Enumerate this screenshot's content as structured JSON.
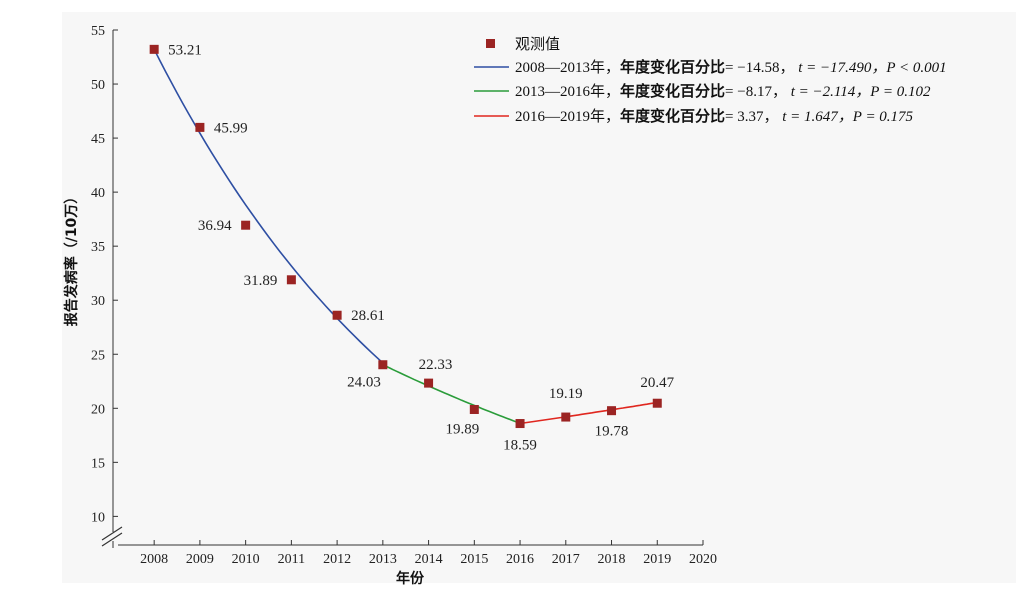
{
  "chart_data": {
    "type": "line",
    "xlabel": "年份",
    "ylabel": "报告发病率（/10万）",
    "x_ticks": [
      "2008",
      "2009",
      "2010",
      "2011",
      "2012",
      "2013",
      "2014",
      "2015",
      "2016",
      "2017",
      "2018",
      "2019",
      "2020"
    ],
    "y_ticks": [
      "10",
      "15",
      "20",
      "25",
      "30",
      "35",
      "40",
      "45",
      "50",
      "55"
    ],
    "xlim": [
      2007.1,
      2020
    ],
    "ylim": [
      8,
      55
    ],
    "axis_break": "y",
    "observed": {
      "name": "观测值",
      "color": "#9b2423",
      "x": [
        2008,
        2009,
        2010,
        2011,
        2012,
        2013,
        2014,
        2015,
        2016,
        2017,
        2018,
        2019
      ],
      "y": [
        53.21,
        45.99,
        36.94,
        31.89,
        28.61,
        24.03,
        22.33,
        19.89,
        18.59,
        19.19,
        19.78,
        20.47
      ],
      "labels": [
        "53.21",
        "45.99",
        "36.94",
        "31.89",
        "28.61",
        "24.03",
        "22.33",
        "19.89",
        "18.59",
        "19.19",
        "19.78",
        "20.47"
      ]
    },
    "segments": [
      {
        "name": "2008—2013年，年度变化百分比= −14.58，t = −17.490，P < 0.001",
        "label_prefix": "2008—2013年，",
        "label_bold": "年度变化百分比",
        "label_rest": "= −14.58，",
        "label_t": "t = −17.490，",
        "label_p": "P < 0.001",
        "color": "#2e4fa3",
        "start": 2008,
        "end": 2013,
        "apc": -14.58,
        "t": -17.49,
        "p": "< 0.001"
      },
      {
        "name": "2013—2016年，年度变化百分比= −8.17，t = −2.114，P = 0.102",
        "label_prefix": "2013—2016年，",
        "label_bold": "年度变化百分比",
        "label_rest": "= −8.17，",
        "label_t": "t = −2.114，",
        "label_p": "P = 0.102",
        "color": "#2a9c3a",
        "start": 2013,
        "end": 2016,
        "apc": -8.17,
        "t": -2.114,
        "p": "= 0.102"
      },
      {
        "name": "2016—2019年，年度变化百分比= 3.37，t = 1.647，P = 0.175",
        "label_prefix": "2016—2019年，",
        "label_bold": "年度变化百分比",
        "label_rest": "= 3.37，",
        "label_t": "t = 1.647，",
        "label_p": "P = 0.175",
        "color": "#e0271f",
        "start": 2016,
        "end": 2019,
        "apc": 3.37,
        "t": 1.647,
        "p": "= 0.175"
      }
    ],
    "legend_position": "top-right",
    "grid": false
  }
}
